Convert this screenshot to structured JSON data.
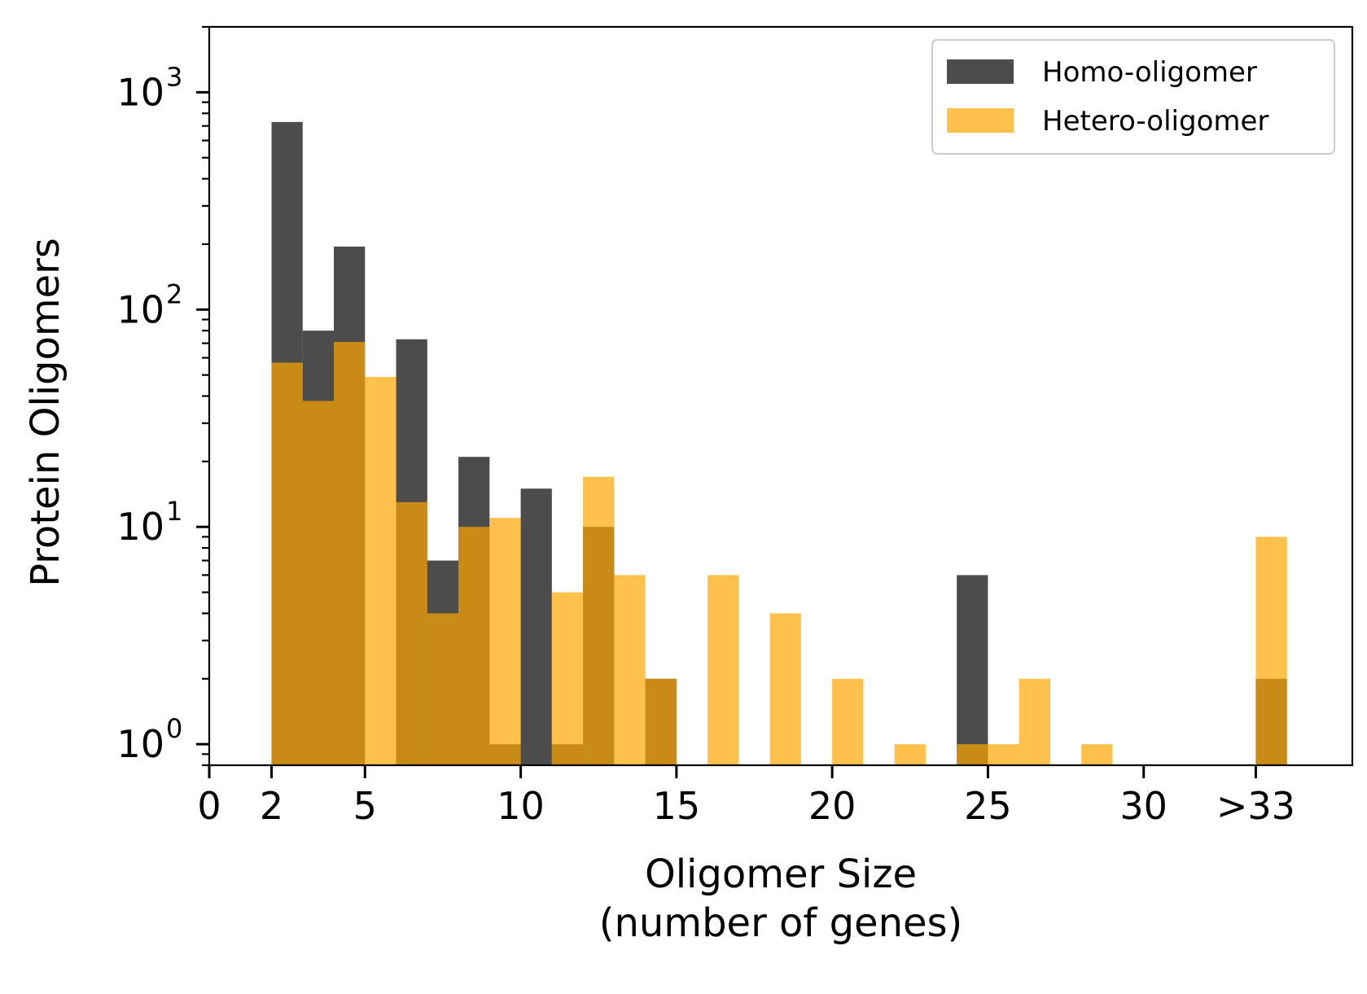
{
  "chart_data": {
    "type": "bar",
    "xlabel": "Oligomer Size\n(number of genes)",
    "xlabel_lines": [
      "Oligomer Size",
      "(number of genes)"
    ],
    "ylabel": "Protein Oligomers",
    "yscale": "log",
    "ylim": [
      0.8,
      2000
    ],
    "xlim": [
      0,
      36.7
    ],
    "grid": false,
    "legend_position": "upper right",
    "x_ticks": [
      {
        "value": 0,
        "label": "0"
      },
      {
        "value": 2,
        "label": "2"
      },
      {
        "value": 5,
        "label": "5"
      },
      {
        "value": 10,
        "label": "10"
      },
      {
        "value": 15,
        "label": "15"
      },
      {
        "value": 20,
        "label": "20"
      },
      {
        "value": 25,
        "label": "25"
      },
      {
        "value": 30,
        "label": "30"
      },
      {
        "value": 33.6,
        "label": ">33"
      }
    ],
    "y_ticks": [
      {
        "value": 1,
        "base": "10",
        "exp": "0"
      },
      {
        "value": 10,
        "base": "10",
        "exp": "1"
      },
      {
        "value": 100,
        "base": "10",
        "exp": "2"
      },
      {
        "value": 1000,
        "base": "10",
        "exp": "3"
      }
    ],
    "bin_width": 1,
    "series": [
      {
        "name": "Homo-oligomer",
        "color": "#000000",
        "opacity": 0.7,
        "bins": [
          {
            "x": 2,
            "value": 730
          },
          {
            "x": 3,
            "value": 80
          },
          {
            "x": 4,
            "value": 195
          },
          {
            "x": 6,
            "value": 73
          },
          {
            "x": 7,
            "value": 7
          },
          {
            "x": 8,
            "value": 21
          },
          {
            "x": 9,
            "value": 1
          },
          {
            "x": 10,
            "value": 15
          },
          {
            "x": 11,
            "value": 1
          },
          {
            "x": 12,
            "value": 10
          },
          {
            "x": 14,
            "value": 2
          },
          {
            "x": 24,
            "value": 6
          },
          {
            "x": 33.6,
            "value": 2
          }
        ]
      },
      {
        "name": "Hetero-oligomer",
        "color": "#ffa500",
        "opacity": 0.7,
        "bins": [
          {
            "x": 2,
            "value": 57
          },
          {
            "x": 3,
            "value": 38
          },
          {
            "x": 4,
            "value": 71
          },
          {
            "x": 5,
            "value": 49
          },
          {
            "x": 6,
            "value": 13
          },
          {
            "x": 7,
            "value": 4
          },
          {
            "x": 8,
            "value": 10
          },
          {
            "x": 9,
            "value": 11
          },
          {
            "x": 11,
            "value": 5
          },
          {
            "x": 12,
            "value": 17
          },
          {
            "x": 13,
            "value": 6
          },
          {
            "x": 14,
            "value": 2
          },
          {
            "x": 16,
            "value": 6
          },
          {
            "x": 18,
            "value": 4
          },
          {
            "x": 20,
            "value": 2
          },
          {
            "x": 22,
            "value": 1
          },
          {
            "x": 24,
            "value": 1
          },
          {
            "x": 25,
            "value": 1
          },
          {
            "x": 26,
            "value": 2
          },
          {
            "x": 28,
            "value": 1
          },
          {
            "x": 33.6,
            "value": 9
          }
        ]
      }
    ]
  }
}
